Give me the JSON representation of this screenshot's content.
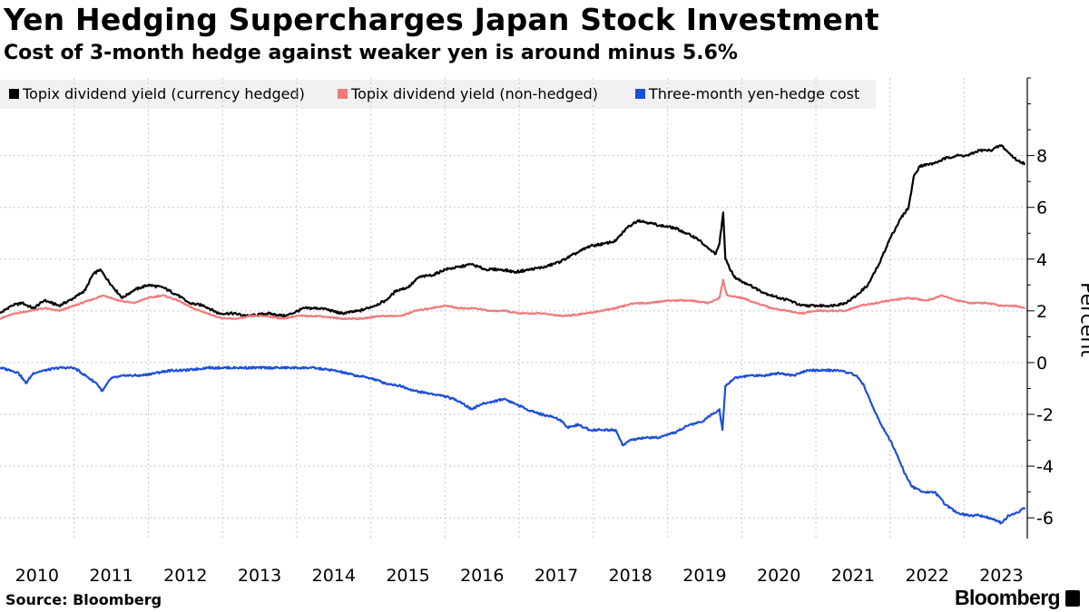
{
  "header": {
    "title": "Yen Hedging Supercharges Japan Stock Investment",
    "subtitle": "Cost of 3-month hedge against weaker yen is around minus 5.6%"
  },
  "footer": {
    "source": "Source: Bloomberg",
    "logo": "Bloomberg"
  },
  "chart_data": {
    "type": "line",
    "title": "Yen Hedging Supercharges Japan Stock Investment",
    "subtitle": "Cost of 3-month hedge against weaker yen is around minus 5.6%",
    "xlabel": "",
    "ylabel": "Percent",
    "xlim": [
      2010.0,
      2023.85
    ],
    "ylim": [
      -6.8,
      11
    ],
    "yticks": [
      -6,
      -4,
      -2,
      0,
      2,
      4,
      6,
      8
    ],
    "xticks": [
      2010,
      2011,
      2012,
      2013,
      2014,
      2015,
      2016,
      2017,
      2018,
      2019,
      2020,
      2021,
      2022,
      2023
    ],
    "grid": true,
    "legend_position": "top-left",
    "series": [
      {
        "name": "Topix dividend yield (currency hedged)",
        "color": "#000000",
        "points": [
          [
            2010.0,
            1.9
          ],
          [
            2010.15,
            2.2
          ],
          [
            2010.3,
            2.3
          ],
          [
            2010.45,
            2.1
          ],
          [
            2010.6,
            2.4
          ],
          [
            2010.8,
            2.2
          ],
          [
            2011.0,
            2.5
          ],
          [
            2011.15,
            2.8
          ],
          [
            2011.25,
            3.4
          ],
          [
            2011.35,
            3.6
          ],
          [
            2011.5,
            3.0
          ],
          [
            2011.65,
            2.5
          ],
          [
            2011.8,
            2.8
          ],
          [
            2012.0,
            3.0
          ],
          [
            2012.2,
            2.9
          ],
          [
            2012.4,
            2.6
          ],
          [
            2012.55,
            2.3
          ],
          [
            2012.75,
            2.2
          ],
          [
            2012.95,
            1.9
          ],
          [
            2013.15,
            1.9
          ],
          [
            2013.35,
            1.8
          ],
          [
            2013.6,
            1.9
          ],
          [
            2013.85,
            1.8
          ],
          [
            2014.1,
            2.1
          ],
          [
            2014.35,
            2.1
          ],
          [
            2014.6,
            1.9
          ],
          [
            2014.85,
            2.0
          ],
          [
            2015.05,
            2.2
          ],
          [
            2015.2,
            2.4
          ],
          [
            2015.35,
            2.8
          ],
          [
            2015.5,
            2.9
          ],
          [
            2015.65,
            3.3
          ],
          [
            2015.85,
            3.4
          ],
          [
            2016.0,
            3.6
          ],
          [
            2016.2,
            3.7
          ],
          [
            2016.35,
            3.8
          ],
          [
            2016.55,
            3.6
          ],
          [
            2016.75,
            3.6
          ],
          [
            2016.95,
            3.5
          ],
          [
            2017.15,
            3.6
          ],
          [
            2017.35,
            3.7
          ],
          [
            2017.55,
            3.9
          ],
          [
            2017.75,
            4.2
          ],
          [
            2017.95,
            4.5
          ],
          [
            2018.15,
            4.6
          ],
          [
            2018.3,
            4.7
          ],
          [
            2018.45,
            5.2
          ],
          [
            2018.6,
            5.5
          ],
          [
            2018.75,
            5.4
          ],
          [
            2018.9,
            5.3
          ],
          [
            2019.1,
            5.2
          ],
          [
            2019.25,
            5.0
          ],
          [
            2019.4,
            4.8
          ],
          [
            2019.55,
            4.4
          ],
          [
            2019.65,
            4.2
          ],
          [
            2019.7,
            4.6
          ],
          [
            2019.75,
            5.8
          ],
          [
            2019.78,
            4.0
          ],
          [
            2019.9,
            3.3
          ],
          [
            2020.1,
            3.0
          ],
          [
            2020.3,
            2.7
          ],
          [
            2020.5,
            2.5
          ],
          [
            2020.65,
            2.4
          ],
          [
            2020.8,
            2.2
          ],
          [
            2021.0,
            2.2
          ],
          [
            2021.2,
            2.2
          ],
          [
            2021.4,
            2.3
          ],
          [
            2021.55,
            2.6
          ],
          [
            2021.7,
            3.0
          ],
          [
            2021.85,
            3.8
          ],
          [
            2022.0,
            4.8
          ],
          [
            2022.15,
            5.6
          ],
          [
            2022.25,
            6.0
          ],
          [
            2022.32,
            7.2
          ],
          [
            2022.4,
            7.6
          ],
          [
            2022.6,
            7.7
          ],
          [
            2022.75,
            7.9
          ],
          [
            2022.9,
            8.0
          ],
          [
            2023.05,
            8.0
          ],
          [
            2023.2,
            8.2
          ],
          [
            2023.35,
            8.2
          ],
          [
            2023.5,
            8.4
          ],
          [
            2023.6,
            8.1
          ],
          [
            2023.72,
            7.8
          ],
          [
            2023.82,
            7.7
          ]
        ]
      },
      {
        "name": "Topix dividend yield (non-hedged)",
        "color": "#f07b7b",
        "points": [
          [
            2010.0,
            1.7
          ],
          [
            2010.2,
            1.9
          ],
          [
            2010.4,
            2.0
          ],
          [
            2010.6,
            2.1
          ],
          [
            2010.8,
            2.0
          ],
          [
            2011.0,
            2.2
          ],
          [
            2011.2,
            2.4
          ],
          [
            2011.4,
            2.6
          ],
          [
            2011.6,
            2.4
          ],
          [
            2011.8,
            2.3
          ],
          [
            2012.0,
            2.5
          ],
          [
            2012.2,
            2.6
          ],
          [
            2012.4,
            2.4
          ],
          [
            2012.6,
            2.1
          ],
          [
            2012.8,
            1.9
          ],
          [
            2013.0,
            1.7
          ],
          [
            2013.2,
            1.7
          ],
          [
            2013.4,
            1.8
          ],
          [
            2013.6,
            1.8
          ],
          [
            2013.8,
            1.7
          ],
          [
            2014.0,
            1.8
          ],
          [
            2014.3,
            1.8
          ],
          [
            2014.6,
            1.7
          ],
          [
            2014.9,
            1.7
          ],
          [
            2015.1,
            1.8
          ],
          [
            2015.4,
            1.8
          ],
          [
            2015.6,
            2.0
          ],
          [
            2015.8,
            2.1
          ],
          [
            2016.0,
            2.2
          ],
          [
            2016.2,
            2.1
          ],
          [
            2016.4,
            2.1
          ],
          [
            2016.6,
            2.0
          ],
          [
            2016.8,
            2.0
          ],
          [
            2017.0,
            1.9
          ],
          [
            2017.3,
            1.9
          ],
          [
            2017.6,
            1.8
          ],
          [
            2017.9,
            1.9
          ],
          [
            2018.1,
            2.0
          ],
          [
            2018.3,
            2.1
          ],
          [
            2018.55,
            2.3
          ],
          [
            2018.75,
            2.3
          ],
          [
            2019.0,
            2.4
          ],
          [
            2019.3,
            2.4
          ],
          [
            2019.55,
            2.3
          ],
          [
            2019.7,
            2.5
          ],
          [
            2019.75,
            3.2
          ],
          [
            2019.8,
            2.6
          ],
          [
            2020.0,
            2.5
          ],
          [
            2020.2,
            2.3
          ],
          [
            2020.4,
            2.1
          ],
          [
            2020.6,
            2.0
          ],
          [
            2020.8,
            1.9
          ],
          [
            2021.0,
            2.0
          ],
          [
            2021.2,
            2.0
          ],
          [
            2021.4,
            2.0
          ],
          [
            2021.6,
            2.2
          ],
          [
            2021.8,
            2.3
          ],
          [
            2022.0,
            2.4
          ],
          [
            2022.25,
            2.5
          ],
          [
            2022.5,
            2.4
          ],
          [
            2022.7,
            2.6
          ],
          [
            2022.9,
            2.4
          ],
          [
            2023.1,
            2.3
          ],
          [
            2023.3,
            2.3
          ],
          [
            2023.5,
            2.2
          ],
          [
            2023.7,
            2.2
          ],
          [
            2023.82,
            2.1
          ]
        ]
      },
      {
        "name": "Three-month yen-hedge cost",
        "color": "#1d4fd8",
        "points": [
          [
            2010.0,
            -0.2
          ],
          [
            2010.15,
            -0.3
          ],
          [
            2010.25,
            -0.4
          ],
          [
            2010.35,
            -0.8
          ],
          [
            2010.45,
            -0.4
          ],
          [
            2010.6,
            -0.3
          ],
          [
            2010.8,
            -0.2
          ],
          [
            2011.0,
            -0.2
          ],
          [
            2011.15,
            -0.5
          ],
          [
            2011.3,
            -0.8
          ],
          [
            2011.38,
            -1.1
          ],
          [
            2011.5,
            -0.6
          ],
          [
            2011.7,
            -0.5
          ],
          [
            2011.9,
            -0.5
          ],
          [
            2012.1,
            -0.4
          ],
          [
            2012.3,
            -0.3
          ],
          [
            2012.5,
            -0.3
          ],
          [
            2012.8,
            -0.2
          ],
          [
            2013.0,
            -0.2
          ],
          [
            2013.3,
            -0.2
          ],
          [
            2013.6,
            -0.2
          ],
          [
            2013.9,
            -0.2
          ],
          [
            2014.2,
            -0.2
          ],
          [
            2014.5,
            -0.3
          ],
          [
            2014.8,
            -0.5
          ],
          [
            2015.0,
            -0.6
          ],
          [
            2015.2,
            -0.8
          ],
          [
            2015.4,
            -0.9
          ],
          [
            2015.6,
            -1.1
          ],
          [
            2015.8,
            -1.2
          ],
          [
            2016.0,
            -1.3
          ],
          [
            2016.2,
            -1.5
          ],
          [
            2016.35,
            -1.8
          ],
          [
            2016.5,
            -1.6
          ],
          [
            2016.65,
            -1.5
          ],
          [
            2016.8,
            -1.4
          ],
          [
            2016.95,
            -1.6
          ],
          [
            2017.1,
            -1.8
          ],
          [
            2017.3,
            -2.0
          ],
          [
            2017.45,
            -2.1
          ],
          [
            2017.55,
            -2.2
          ],
          [
            2017.65,
            -2.5
          ],
          [
            2017.8,
            -2.4
          ],
          [
            2017.95,
            -2.6
          ],
          [
            2018.1,
            -2.6
          ],
          [
            2018.3,
            -2.6
          ],
          [
            2018.4,
            -3.2
          ],
          [
            2018.5,
            -3.0
          ],
          [
            2018.7,
            -2.9
          ],
          [
            2018.9,
            -2.9
          ],
          [
            2019.1,
            -2.7
          ],
          [
            2019.3,
            -2.4
          ],
          [
            2019.45,
            -2.3
          ],
          [
            2019.6,
            -2.0
          ],
          [
            2019.7,
            -1.8
          ],
          [
            2019.74,
            -2.6
          ],
          [
            2019.78,
            -0.9
          ],
          [
            2019.9,
            -0.6
          ],
          [
            2020.1,
            -0.5
          ],
          [
            2020.3,
            -0.5
          ],
          [
            2020.5,
            -0.4
          ],
          [
            2020.7,
            -0.5
          ],
          [
            2020.9,
            -0.3
          ],
          [
            2021.1,
            -0.3
          ],
          [
            2021.3,
            -0.3
          ],
          [
            2021.45,
            -0.4
          ],
          [
            2021.55,
            -0.5
          ],
          [
            2021.65,
            -0.9
          ],
          [
            2021.78,
            -1.8
          ],
          [
            2021.88,
            -2.4
          ],
          [
            2022.0,
            -3.0
          ],
          [
            2022.1,
            -3.6
          ],
          [
            2022.2,
            -4.3
          ],
          [
            2022.3,
            -4.8
          ],
          [
            2022.45,
            -5.0
          ],
          [
            2022.6,
            -5.0
          ],
          [
            2022.75,
            -5.5
          ],
          [
            2022.9,
            -5.8
          ],
          [
            2023.05,
            -5.9
          ],
          [
            2023.2,
            -5.9
          ],
          [
            2023.35,
            -6.0
          ],
          [
            2023.5,
            -6.2
          ],
          [
            2023.6,
            -5.9
          ],
          [
            2023.72,
            -5.8
          ],
          [
            2023.82,
            -5.6
          ]
        ]
      }
    ]
  }
}
